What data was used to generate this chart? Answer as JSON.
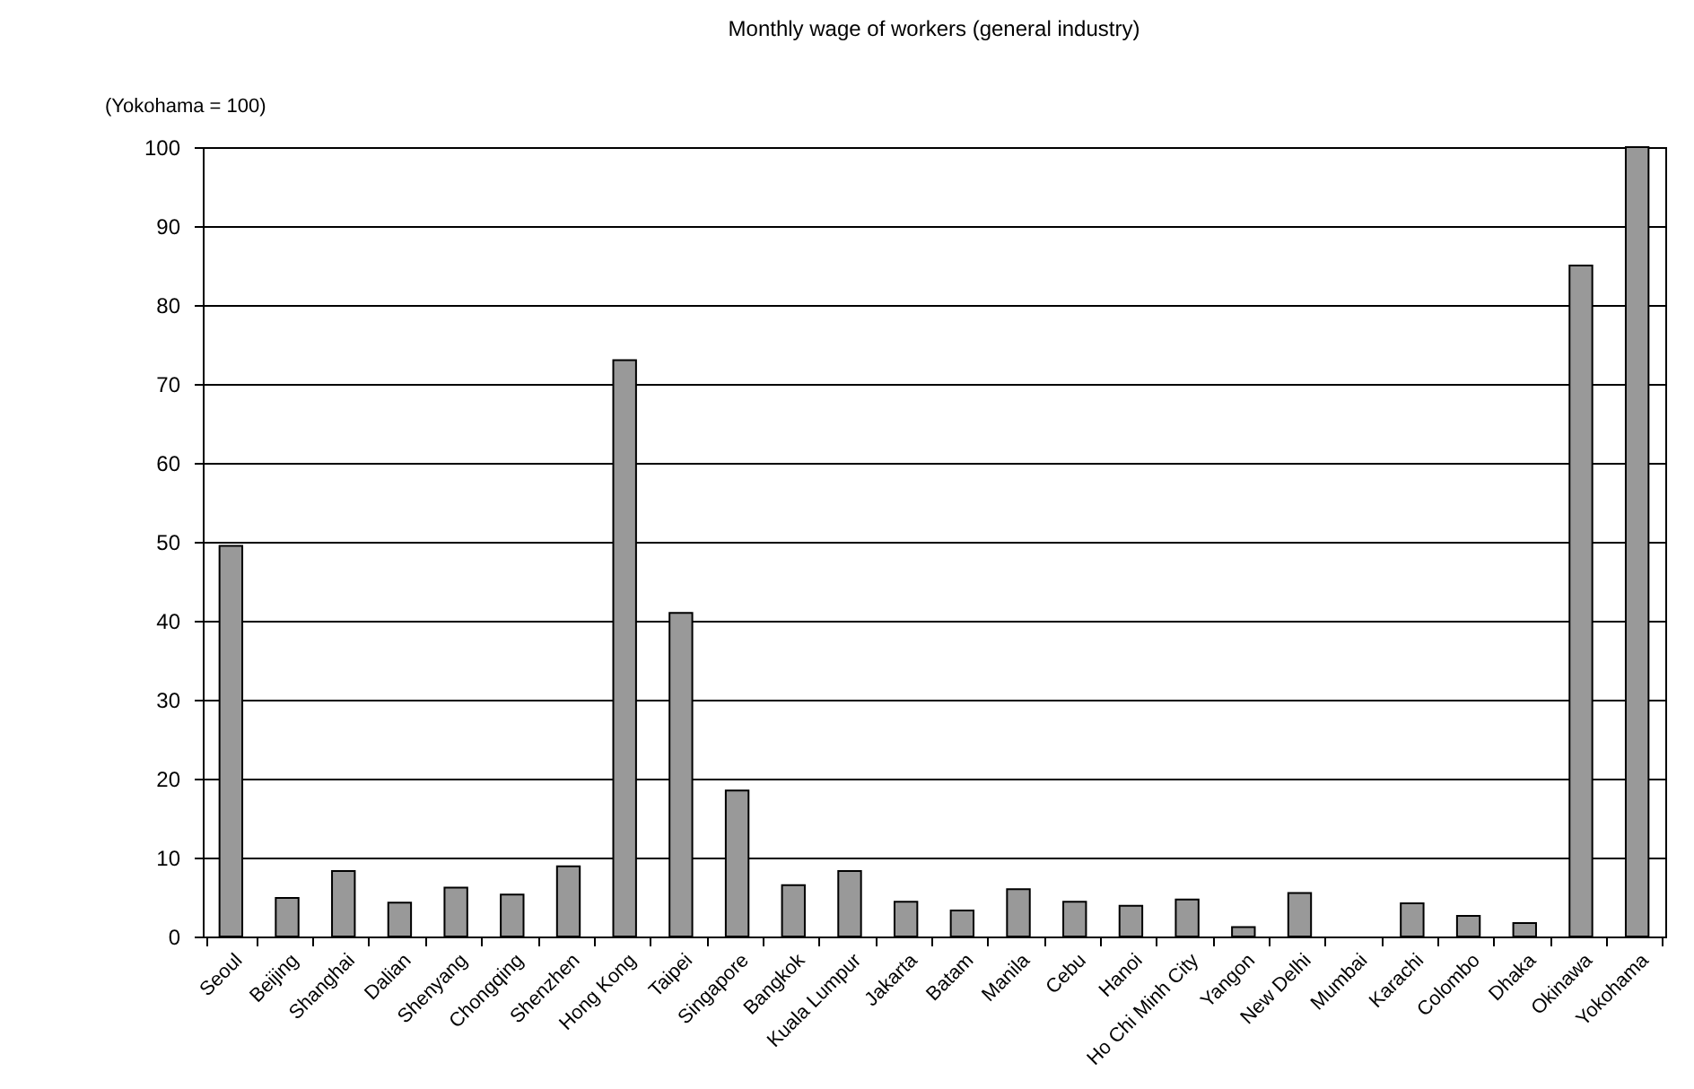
{
  "chart_data": {
    "type": "bar",
    "title": "Monthly wage of workers (general industry)",
    "ylabel": "(Yokohama = 100)",
    "categories": [
      "Seoul",
      "Beijing",
      "Shanghai",
      "Dalian",
      "Shenyang",
      "Chongqing",
      "Shenzhen",
      "Hong Kong",
      "Taipei",
      "Singapore",
      "Bangkok",
      "Kuala Lumpur",
      "Jakarta",
      "Batam",
      "Manila",
      "Cebu",
      "Hanoi",
      "Ho Chi Minh City",
      "Yangon",
      "New Delhi",
      "Mumbai",
      "Karachi",
      "Colombo",
      "Dhaka",
      "Okinawa",
      "Yokohama"
    ],
    "values": [
      49.5,
      4.9,
      8.3,
      4.3,
      6.2,
      5.3,
      8.9,
      73,
      41,
      18.5,
      6.5,
      8.3,
      4.4,
      3.3,
      6.0,
      4.4,
      3.9,
      4.7,
      1.2,
      5.5,
      null,
      4.2,
      2.6,
      1.7,
      85,
      100
    ],
    "color": "#999999",
    "ylim": [
      0,
      100
    ],
    "yticks": [
      0,
      10,
      20,
      30,
      40,
      50,
      60,
      70,
      80,
      90,
      100
    ],
    "grid": "y"
  }
}
